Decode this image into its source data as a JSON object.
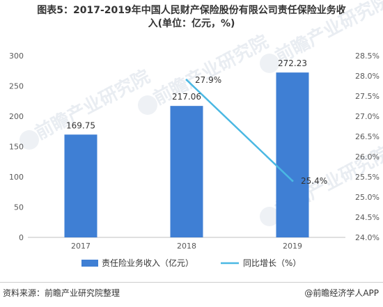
{
  "title_line1": "图表5：2017-2019年中国人民财产保险股份有限公司责任保险业务收",
  "title_line2": "入(单位：亿元，%)",
  "source": "资料来源：前瞻产业研究院整理",
  "brand": "@前瞻经济学人APP",
  "watermark": "前瞻产业研究院",
  "colors": {
    "bar": "#3f7fd4",
    "line": "#4ab8e3",
    "axis": "#bfbfbf",
    "text": "#595959"
  },
  "chart_data": {
    "type": "bar",
    "categories": [
      "2017",
      "2018",
      "2019"
    ],
    "series": [
      {
        "name": "责任险业务收入（亿元）",
        "type": "bar",
        "axis": "left",
        "values": [
          169.75,
          217.06,
          272.23
        ],
        "labels": [
          "169.75",
          "217.06",
          "272.23"
        ]
      },
      {
        "name": "同比增长（%）",
        "type": "line",
        "axis": "right",
        "x": [
          "2018",
          "2019"
        ],
        "values": [
          27.9,
          25.4
        ],
        "labels": [
          "27.9%",
          "25.4%"
        ]
      }
    ],
    "y_left": {
      "min": 0,
      "max": 300,
      "ticks": [
        "0",
        "50",
        "100",
        "150",
        "200",
        "250",
        "300"
      ]
    },
    "y_right": {
      "min": 24.0,
      "max": 28.5,
      "ticks": [
        "24.0%",
        "24.5%",
        "25.0%",
        "25.5%",
        "26.0%",
        "26.5%",
        "27.0%",
        "27.5%",
        "28.0%",
        "28.5%"
      ]
    },
    "grid": false,
    "legend": "bottom"
  }
}
